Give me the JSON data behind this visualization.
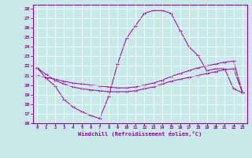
{
  "xlabel": "Windchill (Refroidissement éolien,°C)",
  "xlim": [
    -0.5,
    23.5
  ],
  "ylim": [
    16,
    28.4
  ],
  "yticks": [
    16,
    17,
    18,
    19,
    20,
    21,
    22,
    23,
    24,
    25,
    26,
    27,
    28
  ],
  "xticks": [
    0,
    1,
    2,
    3,
    4,
    5,
    6,
    7,
    8,
    9,
    10,
    11,
    12,
    13,
    14,
    15,
    16,
    17,
    18,
    19,
    20,
    21,
    22,
    23
  ],
  "bg_color": "#c9e9e9",
  "line_color": "#990099",
  "grid_color": "#ffffff",
  "series": [
    {
      "x": [
        0,
        1,
        2,
        3,
        4,
        5,
        6,
        7,
        8,
        9,
        10,
        11,
        12,
        13,
        14,
        15,
        16,
        17,
        18,
        19,
        20,
        21,
        22,
        23
      ],
      "y": [
        21.8,
        20.7,
        19.9,
        18.5,
        17.7,
        17.2,
        16.8,
        16.5,
        18.8,
        22.2,
        24.9,
        26.2,
        27.5,
        27.8,
        27.8,
        27.5,
        25.7,
        24.0,
        23.1,
        21.5,
        21.7,
        21.7,
        19.6,
        19.2
      ]
    },
    {
      "x": [
        0,
        1,
        2,
        3,
        4,
        5,
        6,
        7,
        8,
        9,
        10,
        11,
        12,
        13,
        14,
        15,
        16,
        17,
        18,
        19,
        20,
        21,
        22,
        23
      ],
      "y": [
        21.8,
        21.1,
        20.5,
        20.1,
        19.8,
        19.6,
        19.5,
        19.4,
        19.3,
        19.3,
        19.3,
        19.4,
        19.6,
        19.8,
        20.1,
        20.4,
        20.6,
        20.8,
        21.0,
        21.2,
        21.4,
        21.6,
        21.7,
        19.2
      ]
    },
    {
      "x": [
        0,
        1,
        2,
        3,
        4,
        5,
        6,
        7,
        8,
        9,
        10,
        11,
        12,
        13,
        14,
        15,
        16,
        17,
        18,
        19,
        20,
        21,
        22,
        23
      ],
      "y": [
        21.0,
        20.8,
        20.6,
        20.4,
        20.2,
        20.1,
        20.0,
        19.9,
        19.8,
        19.7,
        19.7,
        19.8,
        20.0,
        20.2,
        20.5,
        20.9,
        21.2,
        21.5,
        21.8,
        22.0,
        22.2,
        22.4,
        22.5,
        19.2
      ]
    }
  ]
}
